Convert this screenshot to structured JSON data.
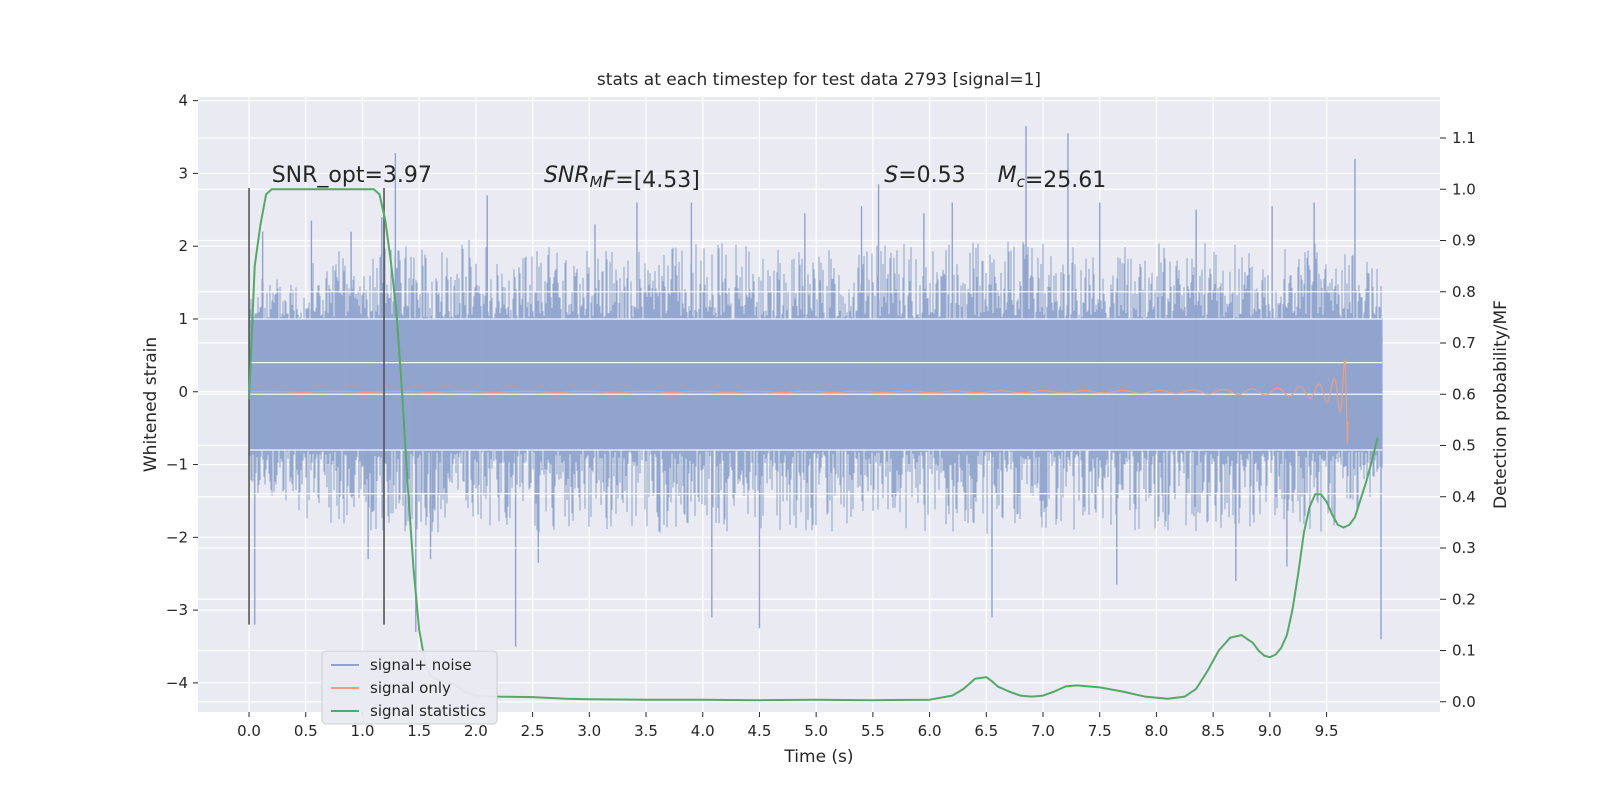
{
  "chart_data": {
    "type": "line",
    "title": "stats at each timestep for test data 2793 [signal=1]",
    "xlabel": "Time (s)",
    "ylabel": "Whitened strain",
    "y2label": "Detection probability/MF",
    "xlim": [
      -0.45,
      10.5
    ],
    "ylim": [
      -4.4,
      4.05
    ],
    "y2lim": [
      -0.02,
      1.18
    ],
    "x_ticks": [
      0.0,
      0.5,
      1.0,
      1.5,
      2.0,
      2.5,
      3.0,
      3.5,
      4.0,
      4.5,
      5.0,
      5.5,
      6.0,
      6.5,
      7.0,
      7.5,
      8.0,
      8.5,
      9.0,
      9.5
    ],
    "x_tick_labels": [
      "0.0",
      "0.5",
      "1.0",
      "1.5",
      "2.0",
      "2.5",
      "3.0",
      "3.5",
      "4.0",
      "4.5",
      "5.0",
      "5.5",
      "6.0",
      "6.5",
      "7.0",
      "7.5",
      "8.0",
      "8.5",
      "9.0",
      "9.5"
    ],
    "y_ticks": [
      -4,
      -3,
      -2,
      -1,
      0,
      1,
      2,
      3,
      4
    ],
    "y_tick_labels": [
      "−4",
      "−3",
      "−2",
      "−1",
      "0",
      "1",
      "2",
      "3",
      "4"
    ],
    "y2_ticks": [
      0.0,
      0.1,
      0.2,
      0.3,
      0.4,
      0.5,
      0.6,
      0.7,
      0.8,
      0.9,
      1.0,
      1.1
    ],
    "y2_tick_labels": [
      "0.0",
      "0.1",
      "0.2",
      "0.3",
      "0.4",
      "0.5",
      "0.6",
      "0.7",
      "0.8",
      "0.9",
      "1.0",
      "1.1"
    ],
    "grid": true,
    "legend_position": "lower-left",
    "vertical_lines": {
      "x": [
        0.0,
        1.19
      ],
      "y_range": [
        -3.2,
        2.8
      ]
    },
    "annotations": [
      {
        "text": "SNR_opt=3.97",
        "x": 0.2,
        "y": 2.88
      },
      {
        "html_parts": [
          {
            "t": "SNR",
            "i": true
          },
          {
            "t": "M",
            "i": true,
            "sub": true
          },
          {
            "t": "F",
            "i": true
          },
          {
            "t": "=[4.53]",
            "i": false
          }
        ],
        "x": 2.6,
        "y": 2.88
      },
      {
        "html_parts": [
          {
            "t": "S",
            "i": true
          },
          {
            "t": "=0.53",
            "i": false
          }
        ],
        "x": 5.6,
        "y": 2.88
      },
      {
        "html_parts": [
          {
            "t": "M",
            "i": true
          },
          {
            "t": "c",
            "i": true,
            "sub": true
          },
          {
            "t": "=25.61",
            "i": false
          }
        ],
        "x": 6.6,
        "y": 2.88
      }
    ],
    "series": [
      {
        "name": "signal+ noise",
        "color": "#8fa3cc",
        "x_range": [
          0.0,
          9.99
        ],
        "body_range": [
          -0.8,
          1.0
        ],
        "envelope_upper": [
          [
            0.0,
            1.5
          ],
          [
            0.5,
            1.9
          ],
          [
            1.0,
            2.0
          ],
          [
            1.5,
            2.0
          ],
          [
            2.0,
            2.1
          ],
          [
            2.5,
            2.0
          ],
          [
            3.0,
            2.05
          ],
          [
            3.5,
            2.0
          ],
          [
            4.0,
            2.1
          ],
          [
            4.5,
            2.0
          ],
          [
            5.0,
            2.05
          ],
          [
            5.5,
            2.0
          ],
          [
            6.0,
            2.1
          ],
          [
            6.5,
            2.05
          ],
          [
            7.0,
            2.1
          ],
          [
            7.5,
            2.0
          ],
          [
            8.0,
            2.05
          ],
          [
            8.5,
            2.1
          ],
          [
            9.0,
            2.0
          ],
          [
            9.5,
            2.1
          ],
          [
            9.99,
            1.7
          ]
        ],
        "envelope_lower": [
          [
            0.0,
            -1.4
          ],
          [
            0.5,
            -1.8
          ],
          [
            1.0,
            -1.9
          ],
          [
            1.5,
            -1.95
          ],
          [
            2.0,
            -1.9
          ],
          [
            2.5,
            -1.95
          ],
          [
            3.0,
            -1.9
          ],
          [
            3.5,
            -1.95
          ],
          [
            4.0,
            -2.0
          ],
          [
            4.5,
            -1.9
          ],
          [
            5.0,
            -1.95
          ],
          [
            5.5,
            -1.9
          ],
          [
            6.0,
            -1.95
          ],
          [
            6.5,
            -2.0
          ],
          [
            7.0,
            -1.9
          ],
          [
            7.5,
            -1.95
          ],
          [
            8.0,
            -1.9
          ],
          [
            8.5,
            -1.95
          ],
          [
            9.0,
            -1.9
          ],
          [
            9.5,
            -1.95
          ],
          [
            9.99,
            -1.6
          ]
        ],
        "spikes": [
          [
            0.05,
            -3.2
          ],
          [
            0.12,
            2.2
          ],
          [
            0.55,
            2.35
          ],
          [
            0.9,
            2.2
          ],
          [
            1.05,
            -2.3
          ],
          [
            1.17,
            2.4
          ],
          [
            1.29,
            3.28
          ],
          [
            1.47,
            -3.3
          ],
          [
            1.6,
            -2.3
          ],
          [
            2.1,
            2.7
          ],
          [
            2.35,
            -3.5
          ],
          [
            2.55,
            -2.35
          ],
          [
            3.05,
            2.3
          ],
          [
            3.42,
            2.6
          ],
          [
            3.9,
            2.6
          ],
          [
            4.08,
            -3.1
          ],
          [
            4.5,
            -3.25
          ],
          [
            4.9,
            2.45
          ],
          [
            5.4,
            2.55
          ],
          [
            5.55,
            2.85
          ],
          [
            5.95,
            2.45
          ],
          [
            6.2,
            2.6
          ],
          [
            6.55,
            -3.1
          ],
          [
            6.85,
            3.65
          ],
          [
            7.22,
            3.55
          ],
          [
            7.5,
            2.6
          ],
          [
            7.65,
            -2.65
          ],
          [
            8.35,
            2.5
          ],
          [
            8.7,
            -2.6
          ],
          [
            9.02,
            2.55
          ],
          [
            9.15,
            -2.4
          ],
          [
            9.39,
            2.6
          ],
          [
            9.75,
            3.2
          ],
          [
            9.98,
            -3.4
          ]
        ]
      },
      {
        "name": "signal only",
        "color": "#e6a088",
        "chirp_end": 9.69,
        "amplitude_at_end": 0.82
      },
      {
        "name": "signal statistics",
        "color": "#55a868",
        "axis": "right",
        "x": [
          0.0,
          0.05,
          0.1,
          0.15,
          0.2,
          0.3,
          0.4,
          0.5,
          0.6,
          0.7,
          0.8,
          0.9,
          1.0,
          1.1,
          1.15,
          1.2,
          1.25,
          1.3,
          1.35,
          1.4,
          1.45,
          1.5,
          1.55,
          1.6,
          1.7,
          1.8,
          1.9,
          2.0,
          2.2,
          2.5,
          2.8,
          3.0,
          3.5,
          4.0,
          4.5,
          5.0,
          5.5,
          6.0,
          6.2,
          6.3,
          6.4,
          6.5,
          6.55,
          6.6,
          6.7,
          6.8,
          6.9,
          7.0,
          7.1,
          7.2,
          7.3,
          7.5,
          7.7,
          7.9,
          8.1,
          8.25,
          8.35,
          8.45,
          8.55,
          8.65,
          8.75,
          8.85,
          8.9,
          8.95,
          9.0,
          9.05,
          9.1,
          9.15,
          9.2,
          9.25,
          9.3,
          9.35,
          9.4,
          9.45,
          9.5,
          9.55,
          9.6,
          9.65,
          9.7,
          9.75,
          9.8,
          9.85,
          9.9,
          9.95
        ],
        "values": [
          0.59,
          0.85,
          0.93,
          0.99,
          1.0,
          1.0,
          1.0,
          1.0,
          1.0,
          1.0,
          1.0,
          1.0,
          1.0,
          1.0,
          0.99,
          0.94,
          0.86,
          0.76,
          0.6,
          0.42,
          0.26,
          0.14,
          0.08,
          0.05,
          0.04,
          0.035,
          0.02,
          0.012,
          0.01,
          0.009,
          0.006,
          0.005,
          0.004,
          0.004,
          0.003,
          0.004,
          0.003,
          0.004,
          0.012,
          0.025,
          0.045,
          0.048,
          0.04,
          0.03,
          0.02,
          0.012,
          0.01,
          0.012,
          0.02,
          0.03,
          0.032,
          0.028,
          0.02,
          0.01,
          0.006,
          0.01,
          0.025,
          0.06,
          0.1,
          0.125,
          0.13,
          0.115,
          0.1,
          0.09,
          0.087,
          0.092,
          0.105,
          0.13,
          0.18,
          0.25,
          0.33,
          0.38,
          0.405,
          0.405,
          0.39,
          0.365,
          0.345,
          0.34,
          0.345,
          0.36,
          0.395,
          0.43,
          0.47,
          0.515
        ]
      }
    ]
  }
}
